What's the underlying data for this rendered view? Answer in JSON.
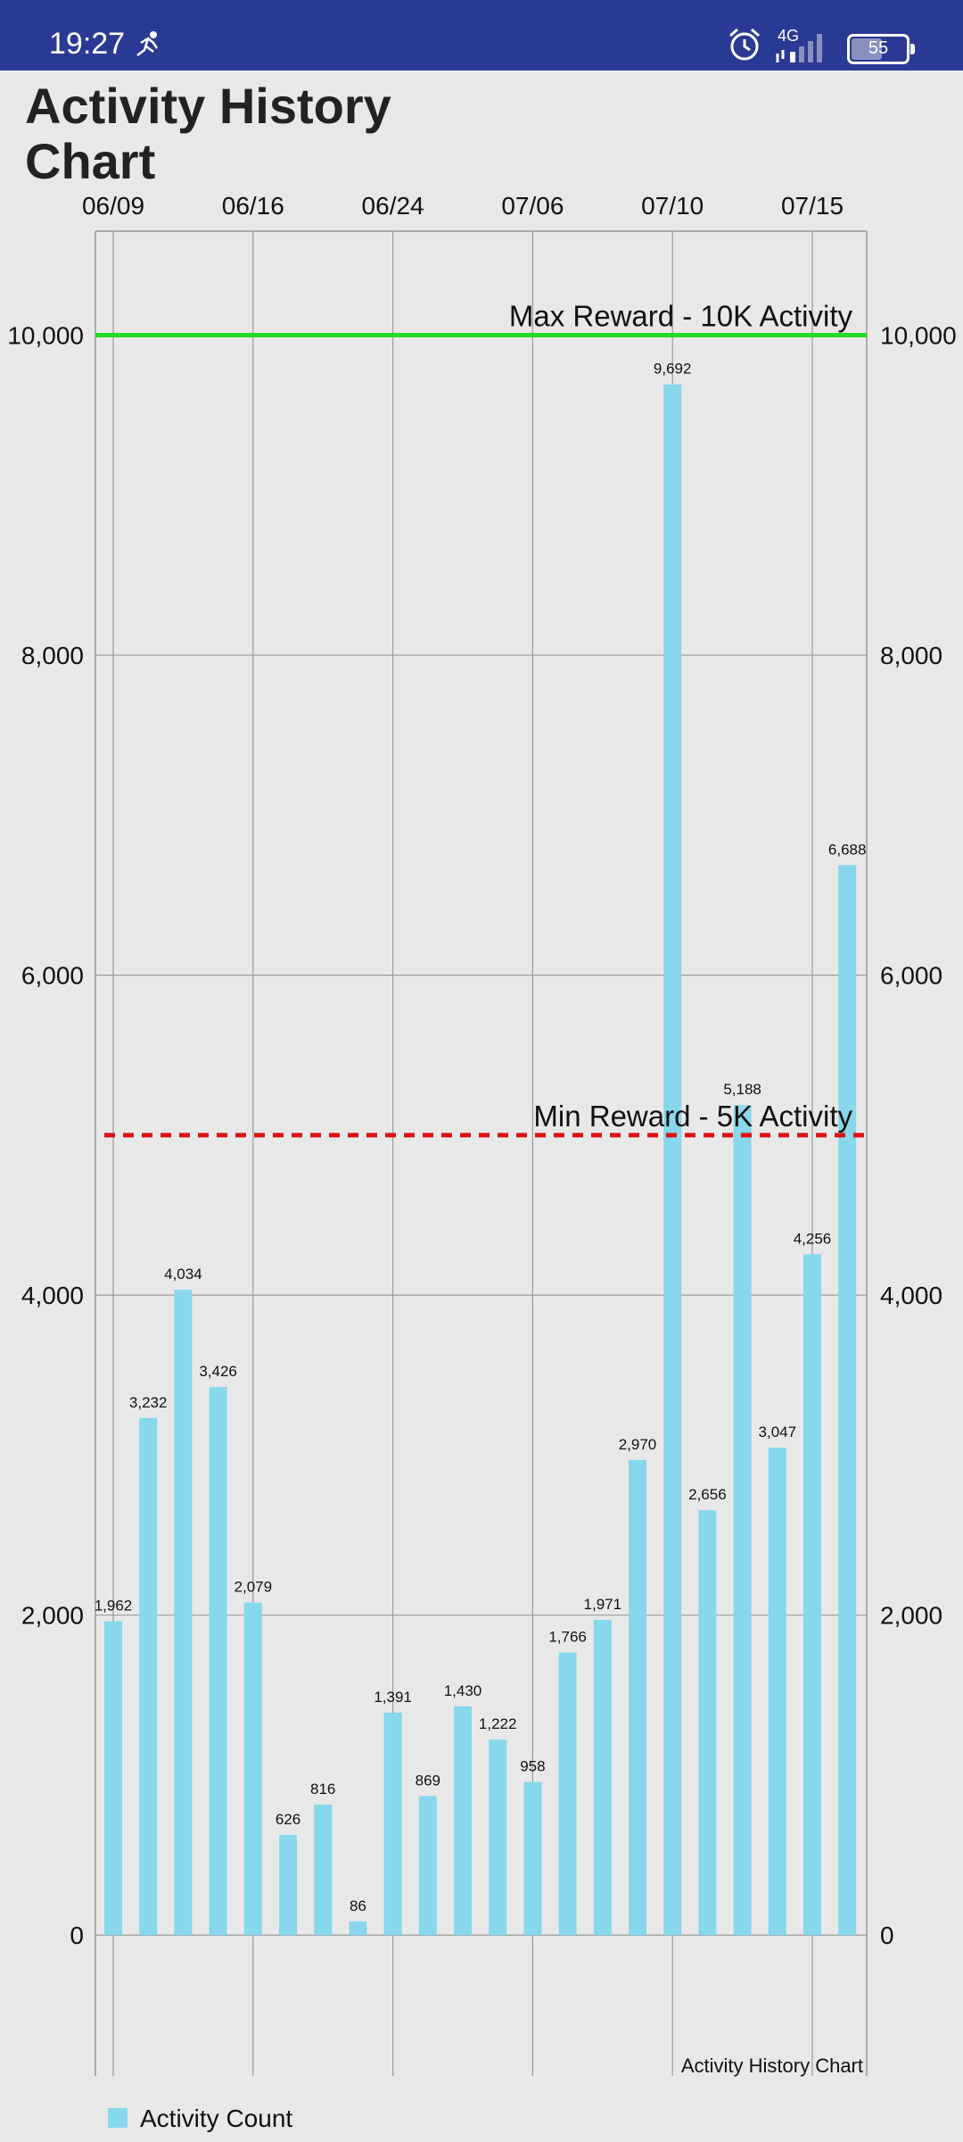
{
  "status_bar": {
    "time": "19:27",
    "network": "4G",
    "battery": "55",
    "icons": [
      "running-icon",
      "alarm-icon",
      "signal-icon",
      "battery-icon"
    ]
  },
  "page": {
    "title": "Activity History Chart"
  },
  "chart_data": {
    "type": "bar",
    "title": "Activity History Chart",
    "caption": "Activity History Chart",
    "x_ticks": [
      "06/09",
      "06/16",
      "06/24",
      "07/06",
      "07/10",
      "07/15"
    ],
    "x_tick_bar_index": [
      0,
      4,
      8,
      12,
      16,
      20
    ],
    "values": [
      1962,
      3232,
      4034,
      3426,
      2079,
      626,
      816,
      86,
      1391,
      869,
      1430,
      1222,
      958,
      1766,
      1971,
      2970,
      9692,
      2656,
      5188,
      3047,
      4256,
      6688
    ],
    "value_labels": [
      "1,962",
      "3,232",
      "4,034",
      "3,426",
      "2,079",
      "626",
      "816",
      "86",
      "1,391",
      "869",
      "1,430",
      "1,222",
      "958",
      "1,766",
      "1,971",
      "2,970",
      "9,692",
      "2,656",
      "5,188",
      "3,047",
      "4,256",
      "6,688"
    ],
    "y_ticks": [
      0,
      2000,
      4000,
      6000,
      8000,
      10000
    ],
    "y_tick_labels": [
      "0",
      "2,000",
      "4,000",
      "6,000",
      "8,000",
      "10,000"
    ],
    "ylim": [
      -880,
      10650
    ],
    "legend": {
      "label": "Activity Count",
      "placement": "bottom-left"
    },
    "series_color": "#87d8ec",
    "grid": true,
    "reference_lines": [
      {
        "label": "Max Reward - 10K Activity",
        "value": 10000,
        "color": "#22dd22",
        "style": "solid"
      },
      {
        "label": "Min Reward - 5K Activity",
        "value": 5000,
        "color": "#dd1111",
        "style": "dashed"
      }
    ]
  }
}
